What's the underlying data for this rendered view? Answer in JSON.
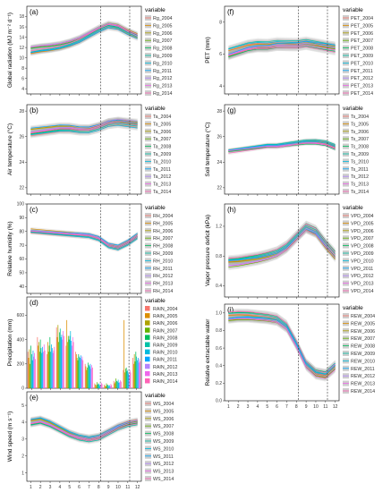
{
  "legend_title": "variable",
  "colors": [
    "#f8766d",
    "#db8e00",
    "#aea200",
    "#64b200",
    "#00bd5c",
    "#00c1a7",
    "#00badE",
    "#00a6ff",
    "#b385ff",
    "#ef67eb",
    "#ff63b6"
  ],
  "chart_data": [
    {
      "id": "a",
      "type": "line",
      "panel_label": "(a)",
      "ylabel": "Global radiation (MJ m⁻² d⁻¹)",
      "xlabel": "",
      "xlim": [
        0.6,
        12.4
      ],
      "ylim": [
        3,
        20
      ],
      "yticks": [
        4,
        6,
        8,
        10,
        12,
        14,
        16,
        18
      ],
      "xticks": [
        1,
        2,
        3,
        4,
        5,
        6,
        7,
        8,
        9,
        10,
        11,
        12
      ],
      "vlines": [
        8.2,
        11.2
      ],
      "show_xticks": false,
      "series_labels": [
        "Rg_2004",
        "Rg_2005",
        "Rg_2006",
        "Rg_2007",
        "Rg_2008",
        "Rg_2009",
        "Rg_2010",
        "Rg_2011",
        "Rg_2012",
        "Rg_2013",
        "Rg_2014"
      ],
      "x": [
        1,
        2,
        3,
        4,
        5,
        6,
        7,
        8,
        9,
        10,
        11,
        12
      ],
      "mean": [
        11.5,
        11.8,
        12.0,
        12.3,
        12.8,
        13.5,
        14.5,
        15.5,
        16.3,
        16.0,
        15.0,
        14.2
      ],
      "band": 1.3
    },
    {
      "id": "b",
      "type": "line",
      "panel_label": "(b)",
      "ylabel": "Air temperature (°C)",
      "xlabel": "",
      "xlim": [
        0.6,
        12.4
      ],
      "ylim": [
        21.5,
        28.5
      ],
      "yticks": [
        22,
        24,
        26,
        28
      ],
      "xticks": [
        1,
        2,
        3,
        4,
        5,
        6,
        7,
        8,
        9,
        10,
        11,
        12
      ],
      "vlines": [
        8.2,
        11.2
      ],
      "show_xticks": false,
      "series_labels": [
        "Ta_2004",
        "Ta_2005",
        "Ta_2006",
        "Ta_2007",
        "Ta_2008",
        "Ta_2009",
        "Ta_2010",
        "Ta_2011",
        "Ta_2012",
        "Ta_2013",
        "Ta_2014"
      ],
      "x": [
        1,
        2,
        3,
        4,
        5,
        6,
        7,
        8,
        9,
        10,
        11,
        12
      ],
      "mean": [
        26.3,
        26.4,
        26.5,
        26.6,
        26.6,
        26.5,
        26.5,
        26.7,
        27.0,
        27.1,
        27.0,
        26.9
      ],
      "band": 0.6
    },
    {
      "id": "c",
      "type": "line",
      "panel_label": "(c)",
      "ylabel": "Relative humidity (%)",
      "xlabel": "",
      "xlim": [
        0.6,
        12.4
      ],
      "ylim": [
        35,
        100
      ],
      "yticks": [
        40,
        50,
        60,
        70,
        80,
        90,
        100
      ],
      "xticks": [
        1,
        2,
        3,
        4,
        5,
        6,
        7,
        8,
        9,
        10,
        11,
        12
      ],
      "vlines": [
        8.2,
        11.2
      ],
      "show_xticks": false,
      "series_labels": [
        "RH_2004",
        "RH_2005",
        "RH_2006",
        "RH_2007",
        "RH_2008",
        "RH_2009",
        "RH_2010",
        "RH_2011",
        "RH_2012",
        "RH_2013",
        "RH_2014"
      ],
      "x": [
        1,
        2,
        3,
        4,
        5,
        6,
        7,
        8,
        9,
        10,
        11,
        12
      ],
      "mean": [
        80,
        79.5,
        79,
        78.5,
        78,
        77.5,
        77,
        75,
        70,
        68.5,
        72,
        77
      ],
      "band": 3.5
    },
    {
      "id": "d",
      "type": "bar",
      "panel_label": "(d)",
      "ylabel": "Precipitation (mm)",
      "xlabel": "",
      "xlim": [
        0.5,
        12.5
      ],
      "ylim": [
        0,
        750
      ],
      "yticks": [
        0,
        200,
        400,
        600
      ],
      "xticks": [
        1,
        2,
        3,
        4,
        5,
        6,
        7,
        8,
        9,
        10,
        11,
        12
      ],
      "vlines": [
        8.2,
        11.2
      ],
      "show_xticks": false,
      "series_labels": [
        "RAIN_2004",
        "RAIN_2005",
        "RAIN_2006",
        "RAIN_2007",
        "RAIN_2008",
        "RAIN_2009",
        "RAIN_2010",
        "RAIN_2011",
        "RAIN_2012",
        "RAIN_2013",
        "RAIN_2014"
      ],
      "categories": [
        1,
        2,
        3,
        4,
        5,
        6,
        7,
        8,
        9,
        10,
        11,
        12
      ],
      "series": [
        {
          "values": [
            300,
            420,
            280,
            500,
            350,
            300,
            200,
            40,
            30,
            60,
            150,
            250
          ]
        },
        {
          "values": [
            250,
            350,
            380,
            420,
            560,
            280,
            180,
            30,
            20,
            40,
            560,
            200
          ]
        },
        {
          "values": [
            320,
            380,
            300,
            520,
            380,
            250,
            150,
            25,
            15,
            50,
            130,
            280
          ]
        },
        {
          "values": [
            200,
            300,
            350,
            380,
            430,
            230,
            170,
            50,
            40,
            80,
            160,
            220
          ]
        },
        {
          "values": [
            350,
            400,
            420,
            460,
            400,
            280,
            210,
            30,
            25,
            60,
            170,
            300
          ]
        },
        {
          "values": [
            280,
            330,
            300,
            490,
            430,
            260,
            190,
            40,
            30,
            55,
            140,
            260
          ]
        },
        {
          "values": [
            230,
            290,
            360,
            420,
            470,
            250,
            180,
            35,
            20,
            70,
            150,
            230
          ]
        },
        {
          "values": [
            310,
            340,
            330,
            440,
            390,
            270,
            200,
            20,
            25,
            45,
            120,
            250
          ]
        },
        {
          "values": [
            260,
            300,
            290,
            400,
            350,
            240,
            160,
            30,
            15,
            50,
            110,
            210
          ]
        },
        {
          "values": [
            290,
            360,
            310,
            470,
            420,
            260,
            190,
            45,
            35,
            65,
            150,
            240
          ]
        },
        {
          "values": [
            240,
            310,
            340,
            430,
            380,
            230,
            170,
            35,
            25,
            55,
            130,
            220
          ]
        }
      ]
    },
    {
      "id": "e",
      "type": "line",
      "panel_label": "(e)",
      "ylabel": "Wind speed (m s⁻¹)",
      "xlabel": "",
      "xlim": [
        0.6,
        12.4
      ],
      "ylim": [
        0.5,
        5.8
      ],
      "yticks": [
        1,
        2,
        3,
        4,
        5
      ],
      "xticks": [
        1,
        2,
        3,
        4,
        5,
        6,
        7,
        8,
        9,
        10,
        11,
        12
      ],
      "vlines": [
        8.2,
        11.2
      ],
      "show_xticks": true,
      "series_labels": [
        "WS_2004",
        "WS_2005",
        "WS_2006",
        "WS_2007",
        "WS_2008",
        "WS_2009",
        "WS_2010",
        "WS_2011",
        "WS_2012",
        "WS_2013",
        "WS_2014"
      ],
      "x": [
        1,
        2,
        3,
        4,
        5,
        6,
        7,
        8,
        9,
        10,
        11,
        12
      ],
      "mean": [
        4.0,
        4.1,
        3.9,
        3.6,
        3.3,
        3.1,
        3.0,
        3.1,
        3.4,
        3.7,
        3.9,
        4.0
      ],
      "band": 0.4
    },
    {
      "id": "f",
      "type": "line",
      "panel_label": "(f)",
      "ylabel": "PET (mm)",
      "xlabel": "",
      "xlim": [
        0.6,
        12.4
      ],
      "ylim": [
        3.5,
        9
      ],
      "yticks": [
        4,
        6,
        8
      ],
      "xticks": [
        1,
        2,
        3,
        4,
        5,
        6,
        7,
        8,
        9,
        10,
        11,
        12
      ],
      "vlines": [
        8.2,
        11.2
      ],
      "show_xticks": false,
      "series_labels": [
        "PET_2004",
        "PET_2005",
        "PET_2006",
        "PET_2007",
        "PET_2008",
        "PET_2009",
        "PET_2010",
        "PET_2011",
        "PET_2012",
        "PET_2013",
        "PET_2014"
      ],
      "x": [
        1,
        2,
        3,
        4,
        5,
        6,
        7,
        8,
        9,
        10,
        11,
        12
      ],
      "mean": [
        6.0,
        6.2,
        6.4,
        6.5,
        6.5,
        6.6,
        6.6,
        6.6,
        6.7,
        6.6,
        6.5,
        6.4
      ],
      "band": 0.6
    },
    {
      "id": "g",
      "type": "line",
      "panel_label": "(g)",
      "ylabel": "Soil temperature (°C)",
      "xlabel": "",
      "xlim": [
        0.6,
        12.4
      ],
      "ylim": [
        21.5,
        28.5
      ],
      "yticks": [
        22,
        24,
        26,
        28
      ],
      "xticks": [
        1,
        2,
        3,
        4,
        5,
        6,
        7,
        8,
        9,
        10,
        11,
        12
      ],
      "vlines": [
        8.2,
        11.2
      ],
      "show_xticks": false,
      "series_labels": [
        "Ts_2004",
        "Ts_2005",
        "Ts_2006",
        "Ts_2007",
        "Ts_2008",
        "Ts_2009",
        "Ts_2010",
        "Ts_2011",
        "Ts_2012",
        "Ts_2013",
        "Ts_2014"
      ],
      "x": [
        1,
        2,
        3,
        4,
        5,
        6,
        7,
        8,
        9,
        10,
        11,
        12
      ],
      "mean": [
        24.9,
        25.0,
        25.1,
        25.2,
        25.3,
        25.3,
        25.4,
        25.5,
        25.6,
        25.6,
        25.5,
        25.2
      ],
      "band": 0.35
    },
    {
      "id": "h",
      "type": "line",
      "panel_label": "(h)",
      "ylabel": "Vapor pressure deficit (kPa)",
      "xlabel": "",
      "xlim": [
        0.6,
        12.4
      ],
      "ylim": [
        0.25,
        1.5
      ],
      "yticks": [
        0.4,
        0.8,
        1.2
      ],
      "xticks": [
        1,
        2,
        3,
        4,
        5,
        6,
        7,
        8,
        9,
        10,
        11,
        12
      ],
      "vlines": [
        8.2,
        11.2
      ],
      "show_xticks": false,
      "series_labels": [
        "VPD_2004",
        "VPD_2005",
        "VPD_2006",
        "VPD_2007",
        "VPD_2008",
        "VPD_2009",
        "VPD_2010",
        "VPD_2011",
        "VPD_2012",
        "VPD_2013",
        "VPD_2014"
      ],
      "x": [
        1,
        2,
        3,
        4,
        5,
        6,
        7,
        8,
        9,
        10,
        11,
        12
      ],
      "mean": [
        0.72,
        0.73,
        0.75,
        0.77,
        0.8,
        0.84,
        0.92,
        1.05,
        1.18,
        1.12,
        0.95,
        0.8
      ],
      "band": 0.12
    },
    {
      "id": "i",
      "type": "line",
      "panel_label": "(i)",
      "ylabel": "Relative extractable water",
      "xlabel": "",
      "xlim": [
        0.6,
        12.4
      ],
      "ylim": [
        0,
        1.1
      ],
      "yticks": [
        0.0,
        0.2,
        0.4,
        0.6,
        0.8,
        1.0
      ],
      "xticks": [
        1,
        2,
        3,
        4,
        5,
        6,
        7,
        8,
        9,
        10,
        11,
        12
      ],
      "vlines": [
        8.2,
        11.2
      ],
      "show_xticks": true,
      "series_labels": [
        "REW_2004",
        "REW_2005",
        "REW_2006",
        "REW_2007",
        "REW_2008",
        "REW_2009",
        "REW_2010",
        "REW_2011",
        "REW_2012",
        "REW_2013",
        "REW_2014"
      ],
      "x": [
        1,
        2,
        3,
        4,
        5,
        6,
        7,
        8,
        9,
        10,
        11,
        12
      ],
      "mean": [
        0.96,
        0.97,
        0.97,
        0.96,
        0.95,
        0.93,
        0.85,
        0.65,
        0.42,
        0.32,
        0.3,
        0.4
      ],
      "band": 0.1
    }
  ]
}
